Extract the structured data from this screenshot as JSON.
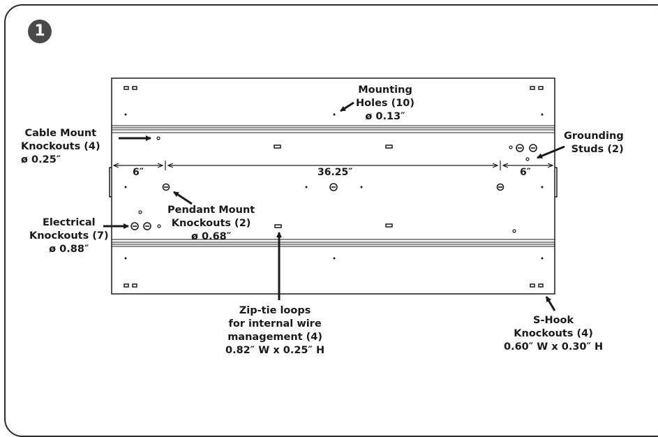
{
  "step_number": "1",
  "dimensions": {
    "left": "6″",
    "center": "36.25″",
    "right": "6″"
  },
  "callouts": {
    "mounting_holes": [
      "Mounting",
      "Holes (10)",
      "ø 0.13″"
    ],
    "cable_mount": [
      "Cable Mount",
      "Knockouts (4)",
      "ø 0.25″"
    ],
    "grounding": [
      "Grounding",
      "Studs (2)"
    ],
    "pendant": [
      "Pendant Mount",
      "Knockouts (2)",
      "ø 0.68″"
    ],
    "electrical": [
      "Electrical",
      "Knockouts (7)",
      "ø 0.88″"
    ],
    "zip_tie": [
      "Zip-tie loops",
      "for internal wire",
      "management (4)",
      "0.82″ W x 0.25″ H"
    ],
    "s_hook": [
      "S-Hook",
      "Knockouts (4)",
      "0.60″ W x 0.30″ H"
    ]
  },
  "colors": {
    "line": "#1a1a1a",
    "badge": "#4a4a4a"
  }
}
